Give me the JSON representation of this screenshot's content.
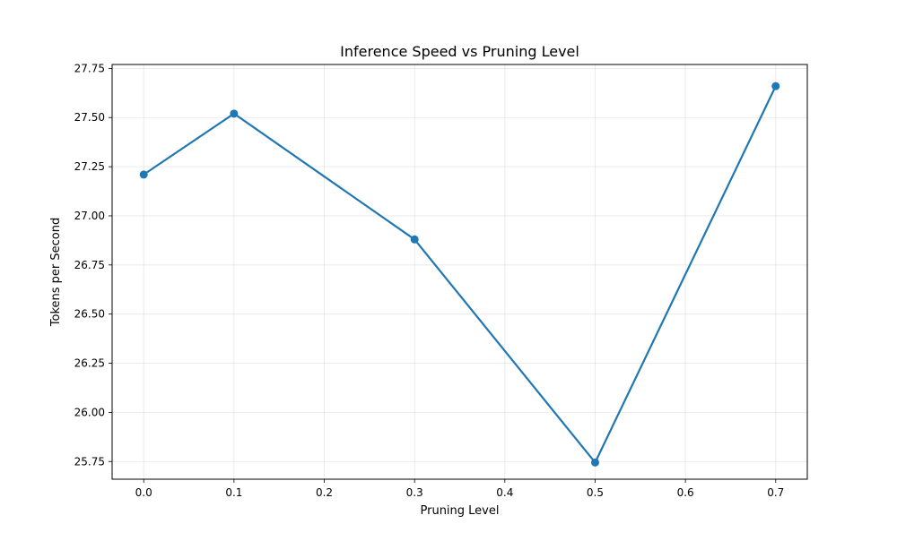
{
  "chart_data": {
    "type": "line",
    "title": "Inference Speed vs Pruning Level",
    "xlabel": "Pruning Level",
    "ylabel": "Tokens per Second",
    "xlim": [
      -0.035,
      0.735
    ],
    "ylim": [
      25.66,
      27.77
    ],
    "xticks": [
      0.0,
      0.1,
      0.2,
      0.3,
      0.4,
      0.5,
      0.6,
      0.7
    ],
    "xtick_labels": [
      "0.0",
      "0.1",
      "0.2",
      "0.3",
      "0.4",
      "0.5",
      "0.6",
      "0.7"
    ],
    "yticks": [
      25.75,
      26.0,
      26.25,
      26.5,
      26.75,
      27.0,
      27.25,
      27.5,
      27.75
    ],
    "ytick_labels": [
      "25.75",
      "26.00",
      "26.25",
      "26.50",
      "26.75",
      "27.00",
      "27.25",
      "27.50",
      "27.75"
    ],
    "grid": true,
    "series": [
      {
        "color": "#1f77b4",
        "marker": "circle",
        "points": [
          {
            "x": 0.0,
            "y": 27.21
          },
          {
            "x": 0.1,
            "y": 27.52
          },
          {
            "x": 0.3,
            "y": 26.88
          },
          {
            "x": 0.5,
            "y": 25.745
          },
          {
            "x": 0.7,
            "y": 27.66
          }
        ]
      }
    ]
  }
}
